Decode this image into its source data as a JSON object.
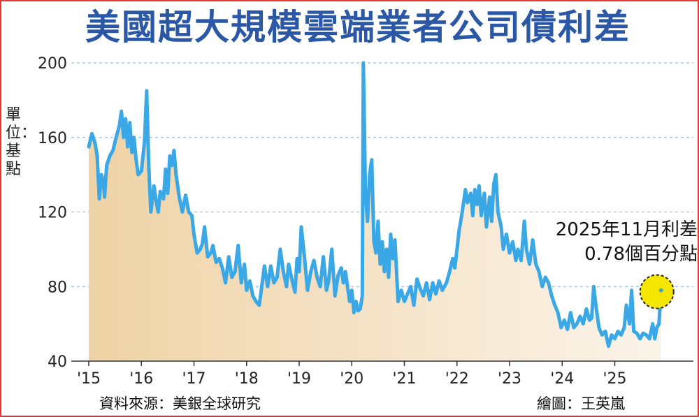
{
  "title": "美國超大規模雲端業者公司債利差",
  "unit_label": "單位：基點",
  "source": "資料來源：美銀全球研究",
  "credit": "繪圖：王英嵐",
  "colors": {
    "frame": "#e53935",
    "title": "#2a57a6",
    "line": "#3aa7e6",
    "area_top": "#efd3a6",
    "area_bottom": "#fbf4ea",
    "grid": "#7fb2d6",
    "highlight": "#f5e600"
  },
  "chart_data": {
    "type": "line",
    "title": "美國超大規模雲端業者公司債利差",
    "ylabel": "單位：基點",
    "xlabel": "",
    "ylim": [
      40,
      200
    ],
    "yticks": [
      40,
      80,
      120,
      160,
      200
    ],
    "xlim": [
      2015,
      2026.2
    ],
    "xtick_labels": [
      {
        "x": 2015,
        "label": "'15"
      },
      {
        "x": 2016,
        "label": "'16"
      },
      {
        "x": 2017,
        "label": "'17"
      },
      {
        "x": 2018,
        "label": "'18"
      },
      {
        "x": 2019,
        "label": "'19"
      },
      {
        "x": 2020,
        "label": "'20"
      },
      {
        "x": 2021,
        "label": "'21"
      },
      {
        "x": 2022,
        "label": "'22"
      },
      {
        "x": 2023,
        "label": "'23"
      },
      {
        "x": 2024,
        "label": "'24"
      },
      {
        "x": 2025,
        "label": "'25"
      }
    ],
    "grid": true,
    "series": [
      {
        "values": [
          [
            2015.0,
            155
          ],
          [
            2015.06,
            162
          ],
          [
            2015.12,
            157
          ],
          [
            2015.16,
            150
          ],
          [
            2015.2,
            127
          ],
          [
            2015.24,
            140
          ],
          [
            2015.28,
            136
          ],
          [
            2015.3,
            128
          ],
          [
            2015.34,
            145
          ],
          [
            2015.4,
            150
          ],
          [
            2015.46,
            153
          ],
          [
            2015.52,
            160
          ],
          [
            2015.58,
            166
          ],
          [
            2015.62,
            174
          ],
          [
            2015.66,
            160
          ],
          [
            2015.7,
            170
          ],
          [
            2015.74,
            155
          ],
          [
            2015.78,
            168
          ],
          [
            2015.82,
            152
          ],
          [
            2015.86,
            160
          ],
          [
            2015.9,
            148
          ],
          [
            2015.94,
            140
          ],
          [
            2016.0,
            142
          ],
          [
            2016.06,
            158
          ],
          [
            2016.1,
            185
          ],
          [
            2016.14,
            145
          ],
          [
            2016.18,
            120
          ],
          [
            2016.24,
            134
          ],
          [
            2016.28,
            126
          ],
          [
            2016.32,
            120
          ],
          [
            2016.36,
            131
          ],
          [
            2016.42,
            127
          ],
          [
            2016.46,
            143
          ],
          [
            2016.5,
            130
          ],
          [
            2016.54,
            150
          ],
          [
            2016.58,
            145
          ],
          [
            2016.62,
            153
          ],
          [
            2016.66,
            140
          ],
          [
            2016.72,
            128
          ],
          [
            2016.78,
            120
          ],
          [
            2016.84,
            129
          ],
          [
            2016.9,
            120
          ],
          [
            2016.96,
            118
          ],
          [
            2017.0,
            108
          ],
          [
            2017.06,
            98
          ],
          [
            2017.12,
            100
          ],
          [
            2017.16,
            103
          ],
          [
            2017.2,
            112
          ],
          [
            2017.26,
            96
          ],
          [
            2017.32,
            98
          ],
          [
            2017.36,
            102
          ],
          [
            2017.42,
            93
          ],
          [
            2017.48,
            95
          ],
          [
            2017.54,
            90
          ],
          [
            2017.6,
            82
          ],
          [
            2017.66,
            96
          ],
          [
            2017.72,
            85
          ],
          [
            2017.78,
            88
          ],
          [
            2017.84,
            102
          ],
          [
            2017.9,
            82
          ],
          [
            2017.96,
            92
          ],
          [
            2018.0,
            78
          ],
          [
            2018.06,
            83
          ],
          [
            2018.12,
            75
          ],
          [
            2018.18,
            72
          ],
          [
            2018.24,
            70
          ],
          [
            2018.28,
            78
          ],
          [
            2018.34,
            91
          ],
          [
            2018.4,
            80
          ],
          [
            2018.46,
            91
          ],
          [
            2018.52,
            82
          ],
          [
            2018.58,
            85
          ],
          [
            2018.64,
            100
          ],
          [
            2018.7,
            88
          ],
          [
            2018.76,
            80
          ],
          [
            2018.8,
            92
          ],
          [
            2018.86,
            84
          ],
          [
            2018.92,
            77
          ],
          [
            2018.96,
            95
          ],
          [
            2019.0,
            88
          ],
          [
            2019.04,
            112
          ],
          [
            2019.1,
            96
          ],
          [
            2019.16,
            78
          ],
          [
            2019.22,
            88
          ],
          [
            2019.28,
            94
          ],
          [
            2019.34,
            85
          ],
          [
            2019.4,
            80
          ],
          [
            2019.46,
            96
          ],
          [
            2019.52,
            78
          ],
          [
            2019.56,
            83
          ],
          [
            2019.62,
            100
          ],
          [
            2019.68,
            75
          ],
          [
            2019.74,
            86
          ],
          [
            2019.8,
            90
          ],
          [
            2019.84,
            82
          ],
          [
            2019.88,
            88
          ],
          [
            2019.92,
            80
          ],
          [
            2019.96,
            72
          ],
          [
            2020.0,
            78
          ],
          [
            2020.04,
            66
          ],
          [
            2020.08,
            72
          ],
          [
            2020.12,
            67
          ],
          [
            2020.16,
            68
          ],
          [
            2020.2,
            75
          ],
          [
            2020.22,
            200
          ],
          [
            2020.26,
            130
          ],
          [
            2020.3,
            115
          ],
          [
            2020.34,
            140
          ],
          [
            2020.38,
            148
          ],
          [
            2020.42,
            104
          ],
          [
            2020.46,
            98
          ],
          [
            2020.5,
            115
          ],
          [
            2020.54,
            92
          ],
          [
            2020.58,
            104
          ],
          [
            2020.62,
            88
          ],
          [
            2020.66,
            100
          ],
          [
            2020.7,
            85
          ],
          [
            2020.74,
            108
          ],
          [
            2020.78,
            95
          ],
          [
            2020.82,
            105
          ],
          [
            2020.88,
            72
          ],
          [
            2020.94,
            78
          ],
          [
            2021.0,
            72
          ],
          [
            2021.06,
            76
          ],
          [
            2021.12,
            80
          ],
          [
            2021.18,
            70
          ],
          [
            2021.24,
            84
          ],
          [
            2021.3,
            79
          ],
          [
            2021.36,
            75
          ],
          [
            2021.42,
            82
          ],
          [
            2021.48,
            73
          ],
          [
            2021.54,
            82
          ],
          [
            2021.6,
            76
          ],
          [
            2021.66,
            83
          ],
          [
            2021.72,
            78
          ],
          [
            2021.8,
            82
          ],
          [
            2021.86,
            88
          ],
          [
            2021.92,
            95
          ],
          [
            2021.96,
            90
          ],
          [
            2022.0,
            100
          ],
          [
            2022.04,
            110
          ],
          [
            2022.1,
            120
          ],
          [
            2022.16,
            132
          ],
          [
            2022.2,
            125
          ],
          [
            2022.26,
            130
          ],
          [
            2022.3,
            118
          ],
          [
            2022.34,
            132
          ],
          [
            2022.38,
            124
          ],
          [
            2022.42,
            134
          ],
          [
            2022.46,
            118
          ],
          [
            2022.52,
            130
          ],
          [
            2022.56,
            112
          ],
          [
            2022.62,
            128
          ],
          [
            2022.66,
            115
          ],
          [
            2022.7,
            135
          ],
          [
            2022.74,
            140
          ],
          [
            2022.78,
            120
          ],
          [
            2022.84,
            112
          ],
          [
            2022.88,
            100
          ],
          [
            2022.94,
            108
          ],
          [
            2023.0,
            98
          ],
          [
            2023.06,
            104
          ],
          [
            2023.12,
            94
          ],
          [
            2023.16,
            100
          ],
          [
            2023.22,
            94
          ],
          [
            2023.28,
            115
          ],
          [
            2023.32,
            100
          ],
          [
            2023.38,
            92
          ],
          [
            2023.44,
            105
          ],
          [
            2023.5,
            92
          ],
          [
            2023.56,
            88
          ],
          [
            2023.62,
            80
          ],
          [
            2023.68,
            85
          ],
          [
            2023.74,
            82
          ],
          [
            2023.8,
            75
          ],
          [
            2023.86,
            70
          ],
          [
            2023.92,
            66
          ],
          [
            2023.98,
            58
          ],
          [
            2024.04,
            62
          ],
          [
            2024.1,
            57
          ],
          [
            2024.16,
            66
          ],
          [
            2024.22,
            58
          ],
          [
            2024.28,
            60
          ],
          [
            2024.34,
            64
          ],
          [
            2024.4,
            60
          ],
          [
            2024.46,
            68
          ],
          [
            2024.52,
            62
          ],
          [
            2024.56,
            63
          ],
          [
            2024.6,
            80
          ],
          [
            2024.64,
            70
          ],
          [
            2024.7,
            58
          ],
          [
            2024.76,
            54
          ],
          [
            2024.82,
            56
          ],
          [
            2024.88,
            48
          ],
          [
            2024.94,
            54
          ],
          [
            2025.0,
            52
          ],
          [
            2025.06,
            56
          ],
          [
            2025.12,
            54
          ],
          [
            2025.18,
            58
          ],
          [
            2025.22,
            70
          ],
          [
            2025.28,
            60
          ],
          [
            2025.32,
            78
          ],
          [
            2025.36,
            56
          ],
          [
            2025.42,
            55
          ],
          [
            2025.48,
            52
          ],
          [
            2025.54,
            55
          ],
          [
            2025.6,
            54
          ],
          [
            2025.66,
            52
          ],
          [
            2025.72,
            60
          ],
          [
            2025.76,
            52
          ],
          [
            2025.8,
            58
          ],
          [
            2025.84,
            60
          ],
          [
            2025.88,
            78
          ]
        ]
      }
    ],
    "annotation": {
      "text_line1": "2025年11月利差",
      "text_line2": "0.78個百分點",
      "x": 2025.88,
      "y": 78
    }
  }
}
